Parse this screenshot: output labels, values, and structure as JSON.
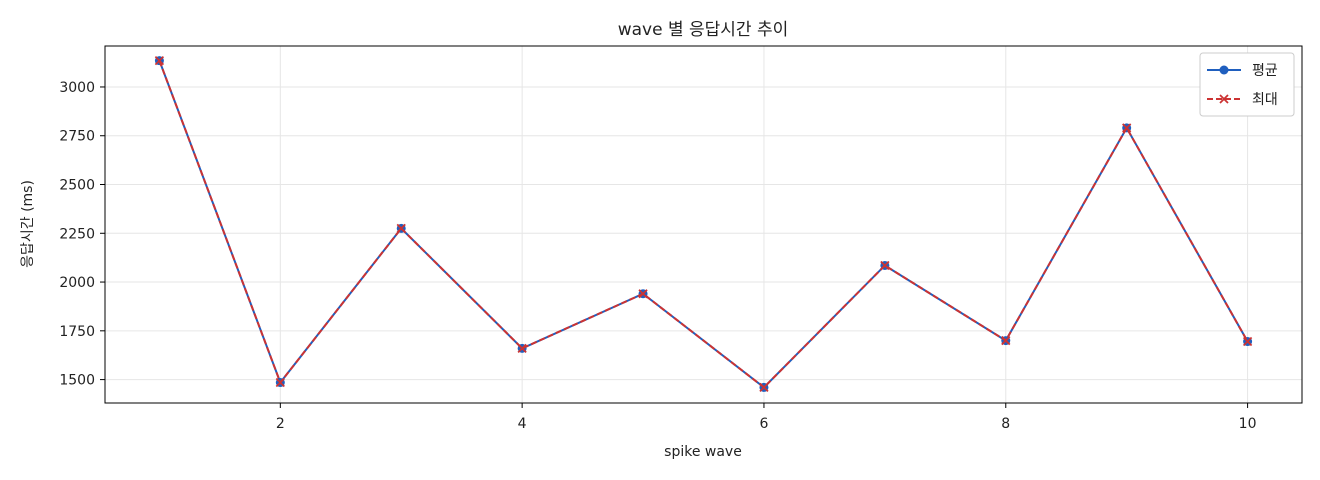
{
  "chart_data": {
    "type": "line",
    "title": "wave 별 응답시간 추이",
    "xlabel": "spike wave",
    "ylabel": "응답시간 (ms)",
    "x": [
      1,
      2,
      3,
      4,
      5,
      6,
      7,
      8,
      9,
      10
    ],
    "xlim": [
      0.55,
      10.45
    ],
    "ylim": [
      1380,
      3210
    ],
    "xticks": [
      2,
      4,
      6,
      8,
      10
    ],
    "yticks": [
      1500,
      1750,
      2000,
      2250,
      2500,
      2750,
      3000
    ],
    "grid": true,
    "legend_position": "top-right",
    "series": [
      {
        "name": "평균",
        "values": [
          3135,
          1485,
          2275,
          1660,
          1940,
          1460,
          2085,
          1700,
          2790,
          1695
        ],
        "color": "#1f5fbf",
        "marker": "circle",
        "linestyle": "solid"
      },
      {
        "name": "최대",
        "values": [
          3135,
          1485,
          2275,
          1660,
          1940,
          1460,
          2085,
          1700,
          2790,
          1695
        ],
        "color": "#cc3333",
        "marker": "x",
        "linestyle": "dashed"
      }
    ]
  }
}
